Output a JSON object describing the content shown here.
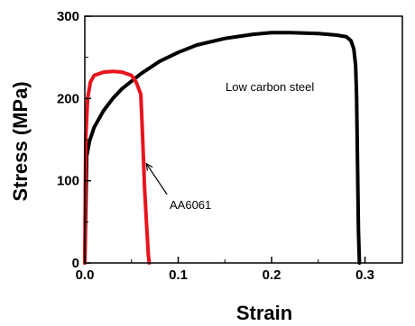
{
  "chart_data": {
    "type": "line",
    "xlabel": "Strain",
    "ylabel": "Stress  (MPa)",
    "xlim": [
      0,
      0.34
    ],
    "ylim": [
      0,
      300
    ],
    "x_ticks": [
      "0.0",
      "0.1",
      "0.2",
      "0.3"
    ],
    "y_ticks": [
      "0",
      "100",
      "200",
      "300"
    ],
    "grid": false,
    "series": [
      {
        "name": "Low carbon steel",
        "color": "#000000",
        "points": [
          [
            0.0,
            0
          ],
          [
            0.002,
            130
          ],
          [
            0.005,
            148
          ],
          [
            0.01,
            165
          ],
          [
            0.02,
            185
          ],
          [
            0.03,
            200
          ],
          [
            0.04,
            212
          ],
          [
            0.06,
            230
          ],
          [
            0.08,
            245
          ],
          [
            0.1,
            256
          ],
          [
            0.12,
            265
          ],
          [
            0.15,
            273
          ],
          [
            0.18,
            278
          ],
          [
            0.2,
            280
          ],
          [
            0.22,
            280
          ],
          [
            0.25,
            279
          ],
          [
            0.27,
            277
          ],
          [
            0.28,
            275
          ],
          [
            0.285,
            270
          ],
          [
            0.288,
            260
          ],
          [
            0.29,
            240
          ],
          [
            0.291,
            200
          ],
          [
            0.292,
            120
          ],
          [
            0.293,
            40
          ],
          [
            0.294,
            0
          ]
        ]
      },
      {
        "name": "AA6061",
        "color": "#e8141c",
        "points": [
          [
            0.0,
            0
          ],
          [
            0.001,
            150
          ],
          [
            0.003,
            200
          ],
          [
            0.006,
            220
          ],
          [
            0.01,
            228
          ],
          [
            0.02,
            232
          ],
          [
            0.03,
            233
          ],
          [
            0.04,
            232
          ],
          [
            0.05,
            228
          ],
          [
            0.055,
            220
          ],
          [
            0.06,
            205
          ],
          [
            0.062,
            150
          ],
          [
            0.064,
            90
          ],
          [
            0.066,
            50
          ],
          [
            0.068,
            10
          ],
          [
            0.069,
            0
          ]
        ]
      }
    ],
    "annotations": [
      {
        "text": "Low carbon steel",
        "x": 0.15,
        "y": 213
      },
      {
        "text": "AA6061",
        "x": 0.088,
        "y": 68,
        "arrow_to": [
          0.064,
          123
        ]
      }
    ]
  }
}
